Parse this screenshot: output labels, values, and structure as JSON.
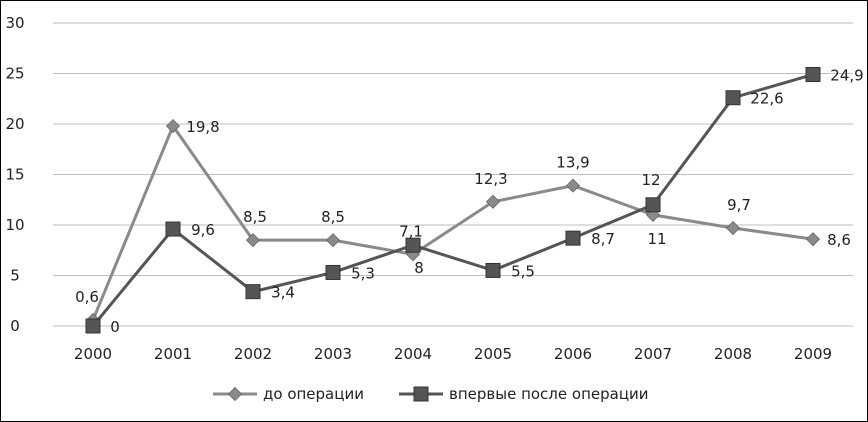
{
  "chart_data": {
    "type": "line",
    "categories": [
      "2000",
      "2001",
      "2002",
      "2003",
      "2004",
      "2005",
      "2006",
      "2007",
      "2008",
      "2009"
    ],
    "series": [
      {
        "name": "до операции",
        "values": [
          0.6,
          19.8,
          8.5,
          8.5,
          7.1,
          12.3,
          13.9,
          11,
          9.7,
          8.6
        ],
        "labels": [
          "0,6",
          "19,8",
          "8,5",
          "8,5",
          "7,1",
          "12,3",
          "13,9",
          "11",
          "9,7",
          "8,6"
        ],
        "color": "#8a8a8a",
        "marker": "diamond"
      },
      {
        "name": "впервые после операции",
        "values": [
          0,
          9.6,
          3.4,
          5.3,
          8,
          5.5,
          8.7,
          12,
          22.6,
          24.9
        ],
        "labels": [
          "0",
          "9,6",
          "3,4",
          "5,3",
          "8",
          "5,5",
          "8,7",
          "12",
          "22,6",
          "24,9"
        ],
        "color": "#555555",
        "marker": "square"
      }
    ],
    "yticks": [
      "0",
      "5",
      "10",
      "15",
      "20",
      "25",
      "30"
    ],
    "ylim": [
      0,
      30
    ],
    "grid": true,
    "legend": "bottom"
  }
}
